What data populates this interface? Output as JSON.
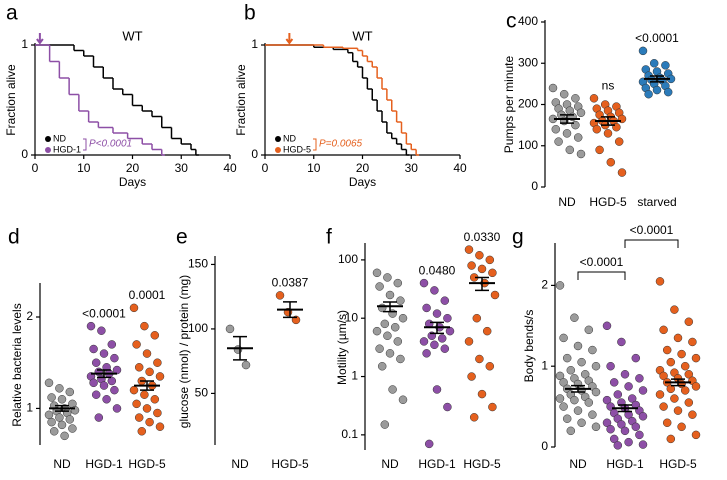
{
  "chart_data": [
    {
      "type": "survival",
      "label": "a",
      "title": "WT",
      "xlabel": "Days",
      "ylabel": "Fraction alive",
      "xlim": [
        0,
        40
      ],
      "xticks": [
        0,
        10,
        20,
        30,
        40
      ],
      "ylim": [
        0,
        1
      ],
      "yticks": [
        0,
        1
      ],
      "arrow_day": 1,
      "arrow_color": "#8d4fa6",
      "annotation": "P<0.0001",
      "annotation_color": "#8d4fa6",
      "series": [
        {
          "name": "ND",
          "color": "#000000",
          "x": [
            0,
            8,
            10,
            12,
            14,
            16,
            18,
            20,
            22,
            24,
            26,
            28,
            30,
            32,
            33
          ],
          "values": [
            1,
            0.95,
            0.9,
            0.8,
            0.7,
            0.6,
            0.55,
            0.45,
            0.4,
            0.35,
            0.25,
            0.15,
            0.1,
            0.05,
            0
          ]
        },
        {
          "name": "HGD-1",
          "color": "#8d4fa6",
          "x": [
            0,
            3,
            5,
            7,
            9,
            11,
            13,
            16,
            19,
            22,
            24,
            26
          ],
          "values": [
            1,
            0.85,
            0.7,
            0.55,
            0.4,
            0.3,
            0.25,
            0.2,
            0.15,
            0.1,
            0.05,
            0
          ]
        }
      ]
    },
    {
      "type": "survival",
      "label": "b",
      "title": "WT",
      "xlabel": "Days",
      "ylabel": "Fraction alive",
      "xlim": [
        0,
        40
      ],
      "xticks": [
        0,
        10,
        20,
        30,
        40
      ],
      "ylim": [
        0,
        1
      ],
      "yticks": [
        0,
        1
      ],
      "arrow_day": 5,
      "arrow_color": "#e5601e",
      "annotation": "P=0.0065",
      "annotation_color": "#e5601e",
      "series": [
        {
          "name": "ND",
          "color": "#000000",
          "x": [
            0,
            10,
            14,
            17,
            18,
            19,
            20,
            21,
            22,
            23,
            24,
            25,
            26,
            27,
            28,
            29
          ],
          "values": [
            1,
            0.98,
            0.96,
            0.93,
            0.85,
            0.8,
            0.7,
            0.6,
            0.5,
            0.4,
            0.3,
            0.2,
            0.15,
            0.1,
            0.05,
            0
          ]
        },
        {
          "name": "HGD-5",
          "color": "#e5601e",
          "x": [
            0,
            12,
            16,
            19,
            20,
            21,
            22,
            23,
            24,
            25,
            26,
            27,
            28,
            29,
            30,
            31
          ],
          "values": [
            1,
            0.98,
            0.97,
            0.95,
            0.9,
            0.85,
            0.8,
            0.7,
            0.6,
            0.5,
            0.4,
            0.3,
            0.2,
            0.1,
            0.05,
            0
          ]
        }
      ]
    },
    {
      "type": "strip",
      "label": "c",
      "ylabel": "Pumps per minute",
      "ylim": [
        0,
        400
      ],
      "yticks": [
        0,
        100,
        200,
        300,
        400
      ],
      "series": [
        {
          "name": "ND",
          "color": "#9b9b9b",
          "mean": 165,
          "sem": 10,
          "values": [
            240,
            225,
            215,
            205,
            200,
            195,
            190,
            185,
            180,
            175,
            170,
            165,
            160,
            150,
            140,
            130,
            120,
            110,
            90,
            80
          ]
        },
        {
          "name": "HGD-5",
          "color": "#e5601e",
          "mean": 160,
          "sem": 10,
          "annotation": "ns",
          "values": [
            215,
            200,
            195,
            190,
            185,
            180,
            175,
            170,
            165,
            160,
            160,
            155,
            150,
            145,
            140,
            130,
            110,
            90,
            60,
            35
          ]
        },
        {
          "name": "starved",
          "color": "#2b7bba",
          "mean": 262,
          "sem": 7,
          "annotation": "<0.0001",
          "values": [
            330,
            300,
            295,
            285,
            280,
            275,
            270,
            265,
            262,
            260,
            258,
            255,
            250,
            245,
            240,
            235,
            230,
            225
          ]
        }
      ]
    },
    {
      "type": "strip",
      "label": "d",
      "ylabel": "Relative bacteria levels",
      "ylim": [
        0.6,
        2.35
      ],
      "yticks": [
        1,
        2
      ],
      "series": [
        {
          "name": "ND",
          "color": "#9b9b9b",
          "mean": 1.0,
          "sem": 0.03,
          "values": [
            1.28,
            1.22,
            1.18,
            1.12,
            1.1,
            1.05,
            1.03,
            1.0,
            0.98,
            0.97,
            0.95,
            0.93,
            0.9,
            0.88,
            0.85,
            0.82,
            0.78,
            0.75,
            0.7
          ]
        },
        {
          "name": "HGD-1",
          "color": "#8d4fa6",
          "mean": 1.38,
          "sem": 0.04,
          "annotation": "<0.0001",
          "values": [
            1.9,
            1.85,
            1.7,
            1.65,
            1.6,
            1.55,
            1.5,
            1.45,
            1.42,
            1.4,
            1.38,
            1.35,
            1.32,
            1.3,
            1.28,
            1.25,
            1.2,
            1.15,
            1.1,
            1.0,
            0.9
          ]
        },
        {
          "name": "HGD-5",
          "color": "#e5601e",
          "mean": 1.25,
          "sem": 0.05,
          "annotation": "0.0001",
          "values": [
            2.1,
            1.9,
            1.8,
            1.7,
            1.6,
            1.5,
            1.45,
            1.4,
            1.35,
            1.3,
            1.25,
            1.2,
            1.15,
            1.1,
            1.05,
            1.0,
            0.95,
            0.9,
            0.85,
            0.8,
            0.75
          ]
        }
      ]
    },
    {
      "type": "strip",
      "label": "e",
      "ylabel": "glucose (nmol) / protein (mg)",
      "ylim": [
        10,
        155
      ],
      "yticks": [
        50,
        100,
        150
      ],
      "series": [
        {
          "name": "ND",
          "color": "#9b9b9b",
          "mean": 85,
          "sem": 9,
          "values": [
            100,
            84,
            72
          ]
        },
        {
          "name": "HGD-5",
          "color": "#e5601e",
          "mean": 115,
          "sem": 6,
          "annotation": "0.0387",
          "values": [
            126,
            113,
            107
          ]
        }
      ]
    },
    {
      "type": "strip",
      "label": "f",
      "ylabel": "Motility (µm/s)",
      "log": true,
      "ylim": [
        0.055,
        180
      ],
      "yticks": [
        0.1,
        1,
        10,
        100
      ],
      "series": [
        {
          "name": "ND",
          "color": "#9b9b9b",
          "mean": 16,
          "sem": 3,
          "values": [
            60,
            50,
            40,
            35,
            25,
            20,
            15,
            12,
            10,
            8,
            7,
            6,
            5,
            4,
            3,
            2.5,
            2,
            1.5,
            0.6,
            0.4,
            0.15
          ]
        },
        {
          "name": "HGD-1",
          "color": "#8d4fa6",
          "mean": 7,
          "sem": 1.5,
          "annotation": "0.0480",
          "values": [
            40,
            30,
            20,
            15,
            12,
            10,
            8,
            7,
            6,
            5,
            4.5,
            4,
            3.5,
            3,
            2.5,
            0.6,
            0.3,
            0.07
          ]
        },
        {
          "name": "HGD-5",
          "color": "#e5601e",
          "mean": 40,
          "sem": 10,
          "annotation": "0.0330",
          "values": [
            150,
            120,
            100,
            80,
            70,
            60,
            50,
            40,
            25,
            10,
            6,
            4,
            2,
            1.5,
            1,
            0.5,
            0.3,
            0.2
          ]
        }
      ]
    },
    {
      "type": "strip",
      "label": "g",
      "ylabel": "Body bends/s",
      "ylim": [
        0,
        2.5
      ],
      "yticks": [
        0,
        1,
        2
      ],
      "comparisons": [
        "<0.0001",
        "<0.0001"
      ],
      "series": [
        {
          "name": "ND",
          "color": "#9b9b9b",
          "mean": 0.72,
          "sem": 0.04,
          "values": [
            2.0,
            1.6,
            1.45,
            1.35,
            1.25,
            1.2,
            1.1,
            1.05,
            1.0,
            0.95,
            0.9,
            0.88,
            0.85,
            0.82,
            0.8,
            0.78,
            0.75,
            0.72,
            0.7,
            0.68,
            0.65,
            0.62,
            0.6,
            0.58,
            0.55,
            0.5,
            0.45,
            0.4,
            0.35,
            0.3,
            0.25,
            0.2
          ]
        },
        {
          "name": "HGD-1",
          "color": "#8d4fa6",
          "mean": 0.48,
          "sem": 0.04,
          "values": [
            1.5,
            1.3,
            1.1,
            1.0,
            0.9,
            0.85,
            0.8,
            0.75,
            0.7,
            0.65,
            0.6,
            0.58,
            0.55,
            0.52,
            0.5,
            0.48,
            0.45,
            0.42,
            0.4,
            0.38,
            0.35,
            0.32,
            0.3,
            0.28,
            0.25,
            0.22,
            0.2,
            0.15,
            0.1,
            0.06,
            0.03,
            0.02
          ]
        },
        {
          "name": "HGD-5",
          "color": "#e5601e",
          "mean": 0.8,
          "sem": 0.04,
          "values": [
            2.05,
            1.7,
            1.55,
            1.45,
            1.35,
            1.3,
            1.2,
            1.15,
            1.1,
            1.05,
            1.0,
            0.95,
            0.92,
            0.9,
            0.88,
            0.85,
            0.82,
            0.8,
            0.78,
            0.75,
            0.72,
            0.7,
            0.65,
            0.6,
            0.55,
            0.5,
            0.45,
            0.4,
            0.3,
            0.25,
            0.15,
            0.1
          ]
        }
      ]
    }
  ]
}
